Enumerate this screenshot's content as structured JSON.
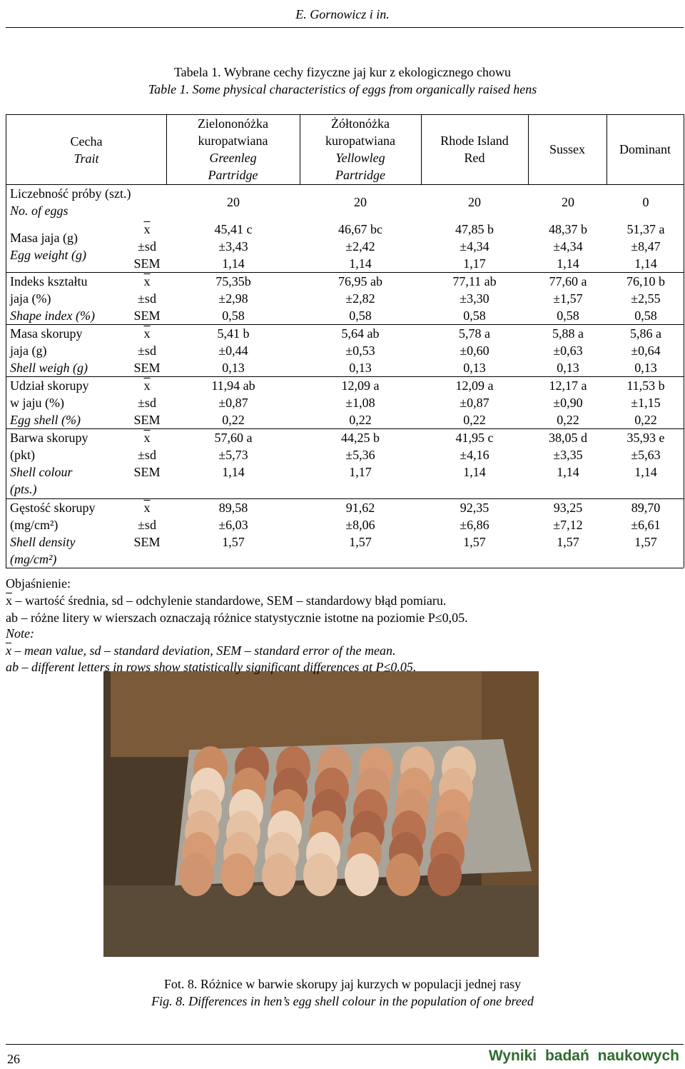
{
  "header": {
    "running_title": "E. Gornowicz i in."
  },
  "caption": {
    "pl": "Tabela 1. Wybrane cechy fizyczne jaj kur z ekologicznego chowu",
    "en": "Table 1. Some physical characteristics of eggs from organically raised hens"
  },
  "table": {
    "corner": {
      "pl": "Cecha",
      "en": "Trait"
    },
    "columns": [
      {
        "pl": [
          "Zielononóżka",
          "kuropatwiana"
        ],
        "en": [
          "Greenleg",
          "Partridge"
        ]
      },
      {
        "pl": [
          "Żółtonóżka",
          "kuropatwiana"
        ],
        "en": [
          "Yellowleg",
          "Partridge"
        ]
      },
      {
        "pl": [
          "Rhode Island",
          "Red"
        ],
        "en": []
      },
      {
        "pl": [
          "Sussex"
        ],
        "en": []
      },
      {
        "pl": [
          "Dominant"
        ],
        "en": []
      }
    ],
    "count_row": {
      "pl": "Liczebność próby (szt.)",
      "en": "No. of eggs",
      "values": [
        "20",
        "20",
        "20",
        "20",
        "0"
      ]
    },
    "stats": [
      "x",
      "±sd",
      "SEM"
    ],
    "groups": [
      {
        "pl": [
          "Masa jaja (g)"
        ],
        "en": [
          "Egg weight (g)"
        ],
        "values": [
          [
            "45,41 c",
            "±3,43",
            "1,14"
          ],
          [
            "46,67 bc",
            "±2,42",
            "1,14"
          ],
          [
            "47,85 b",
            "±4,34",
            "1,17"
          ],
          [
            "48,37 b",
            "±4,34",
            "1,14"
          ],
          [
            "51,37 a",
            "±8,47",
            "1,14"
          ]
        ]
      },
      {
        "pl": [
          "Indeks kształtu",
          "jaja (%)"
        ],
        "en": [
          "Shape index (%)"
        ],
        "values": [
          [
            "75,35b",
            "±2,98",
            "0,58"
          ],
          [
            "76,95 ab",
            "±2,82",
            "0,58"
          ],
          [
            "77,11 ab",
            "±3,30",
            "0,58"
          ],
          [
            "77,60 a",
            "±1,57",
            "0,58"
          ],
          [
            "76,10 b",
            "±2,55",
            "0,58"
          ]
        ]
      },
      {
        "pl": [
          "Masa skorupy",
          "jaja (g)"
        ],
        "en": [
          "Shell weigh (g)"
        ],
        "values": [
          [
            "5,41 b",
            "±0,44",
            "0,13"
          ],
          [
            "5,64 ab",
            "±0,53",
            "0,13"
          ],
          [
            "5,78 a",
            "±0,60",
            "0,13"
          ],
          [
            "5,88 a",
            "±0,63",
            "0,13"
          ],
          [
            "5,86 a",
            "±0,64",
            "0,13"
          ]
        ]
      },
      {
        "pl": [
          "Udział skorupy",
          "w jaju (%)"
        ],
        "en": [
          "Egg shell (%)"
        ],
        "values": [
          [
            "11,94 ab",
            "±0,87",
            "0,22"
          ],
          [
            "12,09 a",
            "±1,08",
            "0,22"
          ],
          [
            "12,09 a",
            "±0,87",
            "0,22"
          ],
          [
            "12,17 a",
            "±0,90",
            "0,22"
          ],
          [
            "11,53 b",
            "±1,15",
            "0,22"
          ]
        ]
      },
      {
        "pl": [
          "Barwa skorupy",
          "(pkt)"
        ],
        "en": [
          "Shell colour",
          "(pts.)"
        ],
        "values": [
          [
            "57,60 a",
            "±5,73",
            "1,14"
          ],
          [
            "44,25 b",
            "±5,36",
            "1,17"
          ],
          [
            "41,95 c",
            "±4,16",
            "1,14"
          ],
          [
            "38,05 d",
            "±3,35",
            "1,14"
          ],
          [
            "35,93 e",
            "±5,63",
            "1,14"
          ]
        ]
      },
      {
        "pl": [
          "Gęstość skorupy",
          "(mg/cm²)"
        ],
        "en": [
          "Shell density",
          "(mg/cm²)"
        ],
        "values": [
          [
            "89,58",
            "±6,03",
            "1,57"
          ],
          [
            "91,62",
            "±8,06",
            "1,57"
          ],
          [
            "92,35",
            "±6,86",
            "1,57"
          ],
          [
            "93,25",
            "±7,12",
            "1,57"
          ],
          [
            "89,70",
            "±6,61",
            "1,57"
          ]
        ]
      }
    ]
  },
  "notes": {
    "pl_title": "Objaśnienie:",
    "pl_lines": [
      {
        "symbol": "x",
        "text": " – wartość średnia, sd – odchylenie standardowe, SEM – standardowy błąd pomiaru."
      },
      {
        "text": "ab – różne litery w wierszach oznaczają różnice statystycznie istotne na poziomie P≤0,05."
      }
    ],
    "en_title": "Note:",
    "en_lines": [
      {
        "symbol": "x",
        "text": " – mean value, sd – standard deviation, SEM – standard error of the mean."
      },
      {
        "text": "ab – different letters in rows show statistically significant differences at P≤0.05."
      }
    ]
  },
  "figure": {
    "caption_pl": "Fot. 8. Różnice w barwie skorupy jaj kurzych w populacji jednej rasy",
    "caption_en": "Fig. 8. Differences in hen’s egg shell colour in the population of one breed"
  },
  "footer": {
    "page_number": "26",
    "journal": "Wyniki badań naukowych"
  }
}
